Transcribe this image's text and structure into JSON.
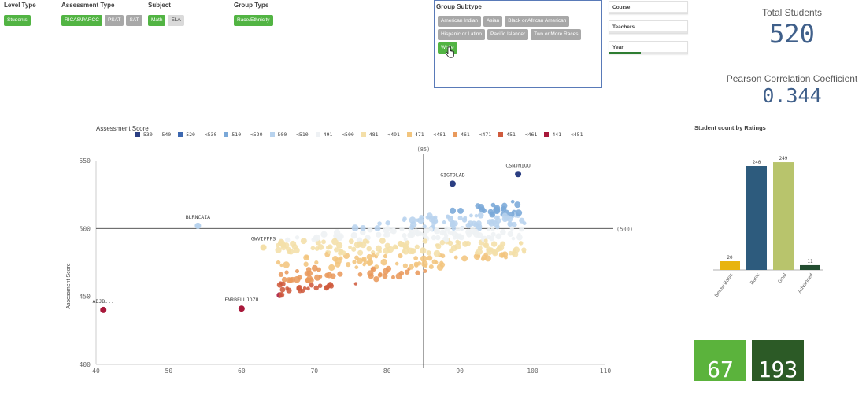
{
  "filters": {
    "level_type": {
      "label": "Level Type",
      "options": [
        {
          "text": "Students",
          "state": "sel"
        }
      ]
    },
    "assessment_type": {
      "label": "Assessment Type",
      "options": [
        {
          "text": "RICAS\\PARCC",
          "state": "sel"
        },
        {
          "text": "PSAT",
          "state": "alt"
        },
        {
          "text": "SAT",
          "state": "alt"
        }
      ]
    },
    "subject": {
      "label": "Subject",
      "options": [
        {
          "text": "Math",
          "state": "sel"
        },
        {
          "text": "ELA",
          "state": "exc"
        }
      ]
    },
    "group_type": {
      "label": "Group Type",
      "options": [
        {
          "text": "Race/Ethnicity",
          "state": "sel"
        }
      ]
    },
    "group_subtype": {
      "label": "Group Subtype",
      "rows": [
        [
          {
            "text": "American Indian",
            "state": "alt"
          },
          {
            "text": "Asian",
            "state": "alt"
          },
          {
            "text": "Black or African American",
            "state": "alt"
          }
        ],
        [
          {
            "text": "Hispanic or Latino",
            "state": "alt"
          },
          {
            "text": "Pacific Islander",
            "state": "alt"
          },
          {
            "text": "Two or More Races",
            "state": "alt"
          }
        ],
        [
          {
            "text": "White",
            "state": "sel"
          }
        ]
      ]
    },
    "collapsed": [
      {
        "label": "Course",
        "fill": 0
      },
      {
        "label": "Teachers",
        "fill": 0
      },
      {
        "label": "Year",
        "fill": 0.4
      }
    ]
  },
  "kpis": {
    "total_students": {
      "title": "Total Students",
      "value": "520"
    },
    "pearson": {
      "title": "Pearson Correlation Coefficient",
      "value": "0.344"
    }
  },
  "tiles": [
    {
      "value": "67",
      "color": "#5bb33c"
    },
    {
      "value": "193",
      "color": "#2c5a26"
    }
  ],
  "colors": {
    "selected": "#52b443",
    "alternative": "#a8a8a8",
    "excluded": "#dadada",
    "kpi": "#3f5f8a",
    "subtype_border": "#597ab8"
  },
  "chart_data": [
    {
      "type": "scatter",
      "title": "",
      "legend_title": "Assessment Score",
      "legend": [
        {
          "label": "530 - 540",
          "color": "#2b3e82"
        },
        {
          "label": "520 - <530",
          "color": "#3d68b0"
        },
        {
          "label": "510 - <520",
          "color": "#7aa8d8"
        },
        {
          "label": "500 - <510",
          "color": "#b8d3ee"
        },
        {
          "label": "491 - <500",
          "color": "#eef1f4"
        },
        {
          "label": "481 - <491",
          "color": "#f4dfa8"
        },
        {
          "label": "471 - <481",
          "color": "#f2c57e"
        },
        {
          "label": "461 - <471",
          "color": "#e99a5c"
        },
        {
          "label": "451 - <461",
          "color": "#cf5b3d"
        },
        {
          "label": "441 - <451",
          "color": "#a8183a"
        }
      ],
      "xlabel": "",
      "ylabel": "Assessment Score",
      "xlim": [
        40,
        110
      ],
      "ylim": [
        400,
        550
      ],
      "xticks": [
        40,
        50,
        60,
        70,
        80,
        90,
        100,
        110
      ],
      "yticks": [
        400,
        450,
        500,
        550
      ],
      "ref_x": {
        "value": 85,
        "label": "(85)"
      },
      "ref_y": {
        "value": 500,
        "label": "(500)"
      },
      "labeled_points": [
        {
          "label": "ADJB...",
          "x": 41,
          "y": 440
        },
        {
          "label": "ENRBELLJOZU",
          "x": 60,
          "y": 441
        },
        {
          "label": "GWVIFPFS",
          "x": 63,
          "y": 486
        },
        {
          "label": "BLRNCAIA",
          "x": 54,
          "y": 502
        },
        {
          "label": "GIGTDLAB",
          "x": 89,
          "y": 533
        },
        {
          "label": "CSNJNIOU",
          "x": 98,
          "y": 540
        }
      ]
    },
    {
      "type": "bar",
      "title": "Student count by Ratings",
      "categories": [
        "Below Basic",
        "Basic",
        "Goal",
        "Advanced"
      ],
      "values": [
        20,
        240,
        249,
        11
      ],
      "colors": [
        "#e8b40f",
        "#2d5b7d",
        "#b8c46c",
        "#234d31"
      ],
      "ylim": [
        0,
        260
      ]
    }
  ]
}
